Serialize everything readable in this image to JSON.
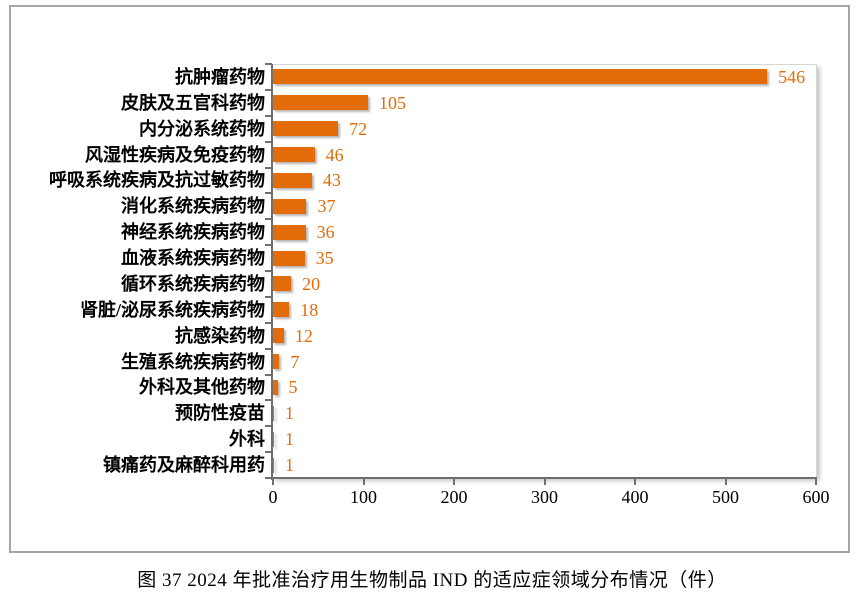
{
  "figure": {
    "caption": "图 37  2024 年批准治疗用生物制品 IND 的适应症领域分布情况（件）"
  },
  "colors": {
    "bar": "#E36C09",
    "value_label": "#E36C09",
    "axis": "#6F6F6F",
    "plot_border": "#D6D6D6",
    "frame_border": "#A6A6A6",
    "text": "#000000"
  },
  "chart_data": {
    "type": "bar",
    "orientation": "horizontal",
    "title": "",
    "categories": [
      "抗肿瘤药物",
      "皮肤及五官科药物",
      "内分泌系统药物",
      "风湿性疾病及免疫药物",
      "呼吸系统疾病及抗过敏药物",
      "消化系统疾病药物",
      "神经系统疾病药物",
      "血液系统疾病药物",
      "循环系统疾病药物",
      "肾脏/泌尿系统疾病药物",
      "抗感染药物",
      "生殖系统疾病药物",
      "外科及其他药物",
      "预防性疫苗",
      "外科",
      "镇痛药及麻醉科用药"
    ],
    "values": [
      546,
      105,
      72,
      46,
      43,
      37,
      36,
      35,
      20,
      18,
      12,
      7,
      5,
      1,
      1,
      1
    ],
    "xlabel": "",
    "ylabel": "",
    "xlim": [
      0,
      600
    ],
    "x_ticks": [
      0,
      100,
      200,
      300,
      400,
      500,
      600
    ],
    "grid": false,
    "legend": "none",
    "value_labels_shown": true
  }
}
